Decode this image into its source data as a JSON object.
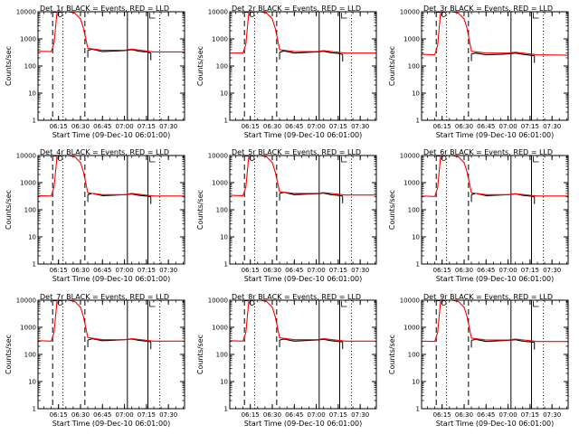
{
  "figure": {
    "xlabel": "Start Time (09-Dec-10 06:01:00)",
    "ylabel": "Counts/sec"
  },
  "chart_data": [
    {
      "type": "line",
      "title": "Det_1r BLACK = Events, RED = LLD",
      "xlabel": "Start Time (09-Dec-10 06:01:00)",
      "ylabel": "Counts/sec",
      "y_scale": "log",
      "ylim": [
        1,
        10000
      ],
      "xlim": [
        "06:01",
        "07:41"
      ],
      "x_ticks": [
        "06:15",
        "06:30",
        "06:45",
        "07:00",
        "07:15",
        "07:30"
      ],
      "y_ticks": [
        "1",
        "10",
        "100",
        "1000",
        "10000"
      ],
      "vertical_markers": {
        "dashed": [
          "06:11",
          "06:33"
        ],
        "dotted": [
          "06:18",
          "07:24"
        ],
        "solid": [
          "07:02",
          "07:16"
        ]
      },
      "series": [
        {
          "name": "Events",
          "color": "#000000",
          "x": [
            "06:35",
            "06:38",
            "06:45",
            "06:55",
            "07:00",
            "07:05",
            "07:10",
            "07:15",
            "07:18"
          ],
          "values": [
            380,
            420,
            340,
            360,
            370,
            400,
            350,
            330,
            300
          ]
        },
        {
          "name": "LLD",
          "color": "#ff0000",
          "x": [
            "06:01",
            "06:10",
            "06:12",
            "06:14",
            "06:18",
            "06:22",
            "06:26",
            "06:30",
            "06:32",
            "06:35",
            "06:45",
            "07:00",
            "07:05",
            "07:20",
            "07:41"
          ],
          "values": [
            350,
            340,
            700,
            10000,
            10000,
            10000,
            9000,
            5500,
            2500,
            450,
            380,
            380,
            420,
            330,
            330
          ]
        }
      ]
    },
    {
      "type": "line",
      "title": "Det_2r BLACK = Events, RED = LLD",
      "xlabel": "Start Time (09-Dec-10 06:01:00)",
      "ylabel": "Counts/sec",
      "y_scale": "log",
      "ylim": [
        1,
        10000
      ],
      "xlim": [
        "06:01",
        "07:41"
      ],
      "x_ticks": [
        "06:15",
        "06:30",
        "06:45",
        "07:00",
        "07:15",
        "07:30"
      ],
      "y_ticks": [
        "1",
        "10",
        "100",
        "1000",
        "10000"
      ],
      "vertical_markers": {
        "dashed": [
          "06:11",
          "06:33"
        ],
        "dotted": [
          "06:18",
          "07:24"
        ],
        "solid": [
          "07:02",
          "07:16"
        ]
      },
      "series": [
        {
          "name": "Events",
          "color": "#000000",
          "x": [
            "06:35",
            "06:38",
            "06:45",
            "06:55",
            "07:00",
            "07:05",
            "07:10",
            "07:15",
            "07:18"
          ],
          "values": [
            320,
            360,
            300,
            320,
            330,
            350,
            310,
            290,
            270
          ]
        },
        {
          "name": "LLD",
          "color": "#ff0000",
          "x": [
            "06:01",
            "06:10",
            "06:12",
            "06:14",
            "06:18",
            "06:22",
            "06:26",
            "06:30",
            "06:32",
            "06:35",
            "06:45",
            "07:00",
            "07:05",
            "07:20",
            "07:41"
          ],
          "values": [
            300,
            300,
            650,
            10000,
            10000,
            10000,
            9000,
            5500,
            2500,
            400,
            340,
            340,
            370,
            300,
            300
          ]
        }
      ]
    },
    {
      "type": "line",
      "title": "Det_3r BLACK = Events, RED = LLD",
      "xlabel": "Start Time (09-Dec-10 06:01:00)",
      "ylabel": "Counts/sec",
      "y_scale": "log",
      "ylim": [
        1,
        10000
      ],
      "xlim": [
        "06:01",
        "07:41"
      ],
      "x_ticks": [
        "06:15",
        "06:30",
        "06:45",
        "07:00",
        "07:15",
        "07:30"
      ],
      "y_ticks": [
        "1",
        "10",
        "100",
        "1000",
        "10000"
      ],
      "vertical_markers": {
        "dashed": [
          "06:11",
          "06:33"
        ],
        "dotted": [
          "06:18",
          "07:24"
        ],
        "solid": [
          "07:02",
          "07:16"
        ]
      },
      "series": [
        {
          "name": "Events",
          "color": "#000000",
          "x": [
            "06:35",
            "06:38",
            "06:45",
            "06:55",
            "07:00",
            "07:05",
            "07:10",
            "07:15",
            "07:18"
          ],
          "values": [
            280,
            300,
            260,
            270,
            280,
            300,
            270,
            250,
            240
          ]
        },
        {
          "name": "LLD",
          "color": "#ff0000",
          "x": [
            "06:01",
            "06:10",
            "06:12",
            "06:14",
            "06:18",
            "06:22",
            "06:26",
            "06:30",
            "06:32",
            "06:35",
            "06:45",
            "07:00",
            "07:05",
            "07:20",
            "07:41"
          ],
          "values": [
            270,
            260,
            600,
            10000,
            10000,
            10000,
            9000,
            5500,
            2500,
            350,
            300,
            300,
            320,
            260,
            250
          ]
        }
      ]
    },
    {
      "type": "line",
      "title": "Det_4r BLACK = Events, RED = LLD",
      "xlabel": "Start Time (09-Dec-10 06:01:00)",
      "ylabel": "Counts/sec",
      "y_scale": "log",
      "ylim": [
        1,
        10000
      ],
      "xlim": [
        "06:01",
        "07:41"
      ],
      "x_ticks": [
        "06:15",
        "06:30",
        "06:45",
        "07:00",
        "07:15",
        "07:30"
      ],
      "y_ticks": [
        "1",
        "10",
        "100",
        "1000",
        "10000"
      ],
      "vertical_markers": {
        "dashed": [
          "06:11",
          "06:33"
        ],
        "dotted": [
          "06:18",
          "07:24"
        ],
        "solid": [
          "07:02",
          "07:16"
        ]
      },
      "series": [
        {
          "name": "Events",
          "color": "#000000",
          "x": [
            "06:35",
            "06:38",
            "06:45",
            "06:55",
            "07:00",
            "07:05",
            "07:10",
            "07:15",
            "07:18"
          ],
          "values": [
            360,
            400,
            330,
            350,
            360,
            380,
            340,
            320,
            300
          ]
        },
        {
          "name": "LLD",
          "color": "#ff0000",
          "x": [
            "06:01",
            "06:10",
            "06:12",
            "06:14",
            "06:18",
            "06:22",
            "06:26",
            "06:30",
            "06:32",
            "06:35",
            "06:45",
            "07:00",
            "07:05",
            "07:20",
            "07:41"
          ],
          "values": [
            330,
            320,
            700,
            10000,
            10000,
            10000,
            9000,
            5500,
            2500,
            420,
            360,
            360,
            400,
            320,
            320
          ]
        }
      ]
    },
    {
      "type": "line",
      "title": "Det_5r BLACK = Events, RED = LLD",
      "xlabel": "Start Time (09-Dec-10 06:01:00)",
      "ylabel": "Counts/sec",
      "y_scale": "log",
      "ylim": [
        1,
        10000
      ],
      "xlim": [
        "06:01",
        "07:41"
      ],
      "x_ticks": [
        "06:15",
        "06:30",
        "06:45",
        "07:00",
        "07:15",
        "07:30"
      ],
      "y_ticks": [
        "1",
        "10",
        "100",
        "1000",
        "10000"
      ],
      "vertical_markers": {
        "dashed": [
          "06:11",
          "06:33"
        ],
        "dotted": [
          "06:18",
          "07:24"
        ],
        "solid": [
          "07:02",
          "07:16"
        ]
      },
      "series": [
        {
          "name": "Events",
          "color": "#000000",
          "x": [
            "06:35",
            "06:38",
            "06:45",
            "06:55",
            "07:00",
            "07:05",
            "07:10",
            "07:15",
            "07:18"
          ],
          "values": [
            400,
            440,
            360,
            380,
            390,
            410,
            360,
            340,
            320
          ]
        },
        {
          "name": "LLD",
          "color": "#ff0000",
          "x": [
            "06:01",
            "06:10",
            "06:12",
            "06:14",
            "06:18",
            "06:22",
            "06:26",
            "06:30",
            "06:32",
            "06:35",
            "06:45",
            "07:00",
            "07:05",
            "07:20",
            "07:41"
          ],
          "values": [
            340,
            330,
            700,
            10000,
            10000,
            10000,
            9000,
            5500,
            2500,
            460,
            400,
            400,
            430,
            350,
            350
          ]
        }
      ]
    },
    {
      "type": "line",
      "title": "Det_6r BLACK = Events, RED = LLD",
      "xlabel": "Start Time (09-Dec-10 06:01:00)",
      "ylabel": "Counts/sec",
      "y_scale": "log",
      "ylim": [
        1,
        10000
      ],
      "xlim": [
        "06:01",
        "07:41"
      ],
      "x_ticks": [
        "06:15",
        "06:30",
        "06:45",
        "07:00",
        "07:15",
        "07:30"
      ],
      "y_ticks": [
        "1",
        "10",
        "100",
        "1000",
        "10000"
      ],
      "vertical_markers": {
        "dashed": [
          "06:11",
          "06:33"
        ],
        "dotted": [
          "06:18",
          "07:24"
        ],
        "solid": [
          "07:02",
          "07:16"
        ]
      },
      "series": [
        {
          "name": "Events",
          "color": "#000000",
          "x": [
            "06:35",
            "06:38",
            "06:45",
            "06:55",
            "07:00",
            "07:05",
            "07:10",
            "07:15",
            "07:18"
          ],
          "values": [
            360,
            400,
            330,
            350,
            360,
            390,
            340,
            320,
            300
          ]
        },
        {
          "name": "LLD",
          "color": "#ff0000",
          "x": [
            "06:01",
            "06:10",
            "06:12",
            "06:14",
            "06:18",
            "06:22",
            "06:26",
            "06:30",
            "06:32",
            "06:35",
            "06:45",
            "07:00",
            "07:05",
            "07:20",
            "07:41"
          ],
          "values": [
            320,
            310,
            650,
            10000,
            10000,
            10000,
            9000,
            5500,
            2500,
            420,
            360,
            360,
            390,
            320,
            320
          ]
        }
      ]
    },
    {
      "type": "line",
      "title": "Det_7r BLACK = Events, RED = LLD",
      "xlabel": "Start Time (09-Dec-10 06:01:00)",
      "ylabel": "Counts/sec",
      "y_scale": "log",
      "ylim": [
        1,
        10000
      ],
      "xlim": [
        "06:01",
        "07:41"
      ],
      "x_ticks": [
        "06:15",
        "06:30",
        "06:45",
        "07:00",
        "07:15",
        "07:30"
      ],
      "y_ticks": [
        "1",
        "10",
        "100",
        "1000",
        "10000"
      ],
      "vertical_markers": {
        "dashed": [
          "06:11",
          "06:33"
        ],
        "dotted": [
          "06:18",
          "07:24"
        ],
        "solid": [
          "07:02",
          "07:16"
        ]
      },
      "series": [
        {
          "name": "Events",
          "color": "#000000",
          "x": [
            "06:35",
            "06:38",
            "06:45",
            "06:55",
            "07:00",
            "07:05",
            "07:10",
            "07:15",
            "07:18"
          ],
          "values": [
            340,
            380,
            320,
            340,
            350,
            370,
            330,
            310,
            290
          ]
        },
        {
          "name": "LLD",
          "color": "#ff0000",
          "x": [
            "06:01",
            "06:10",
            "06:12",
            "06:14",
            "06:18",
            "06:22",
            "06:26",
            "06:30",
            "06:32",
            "06:35",
            "06:45",
            "07:00",
            "07:05",
            "07:20",
            "07:41"
          ],
          "values": [
            320,
            310,
            650,
            10000,
            10000,
            10000,
            9000,
            5500,
            2500,
            420,
            350,
            350,
            380,
            310,
            310
          ]
        }
      ]
    },
    {
      "type": "line",
      "title": "Det_8r BLACK = Events, RED = LLD",
      "xlabel": "Start Time (09-Dec-10 06:01:00)",
      "ylabel": "Counts/sec",
      "y_scale": "log",
      "ylim": [
        1,
        10000
      ],
      "xlim": [
        "06:01",
        "07:41"
      ],
      "x_ticks": [
        "06:15",
        "06:30",
        "06:45",
        "07:00",
        "07:15",
        "07:30"
      ],
      "y_ticks": [
        "1",
        "10",
        "100",
        "1000",
        "10000"
      ],
      "vertical_markers": {
        "dashed": [
          "06:11",
          "06:33"
        ],
        "dotted": [
          "06:18",
          "07:24"
        ],
        "solid": [
          "07:02",
          "07:16"
        ]
      },
      "series": [
        {
          "name": "Events",
          "color": "#000000",
          "x": [
            "06:35",
            "06:38",
            "06:45",
            "06:55",
            "07:00",
            "07:05",
            "07:10",
            "07:15",
            "07:18"
          ],
          "values": [
            340,
            370,
            310,
            330,
            340,
            360,
            320,
            300,
            290
          ]
        },
        {
          "name": "LLD",
          "color": "#ff0000",
          "x": [
            "06:01",
            "06:10",
            "06:12",
            "06:14",
            "06:18",
            "06:22",
            "06:26",
            "06:30",
            "06:32",
            "06:35",
            "06:45",
            "07:00",
            "07:05",
            "07:20",
            "07:41"
          ],
          "values": [
            320,
            310,
            650,
            10000,
            10000,
            10000,
            9000,
            5500,
            2500,
            410,
            350,
            350,
            380,
            310,
            310
          ]
        }
      ]
    },
    {
      "type": "line",
      "title": "Det_9r BLACK = Events, RED = LLD",
      "xlabel": "Start Time (09-Dec-10 06:01:00)",
      "ylabel": "Counts/sec",
      "y_scale": "log",
      "ylim": [
        1,
        10000
      ],
      "xlim": [
        "06:01",
        "07:41"
      ],
      "x_ticks": [
        "06:15",
        "06:30",
        "06:45",
        "07:00",
        "07:15",
        "07:30"
      ],
      "y_ticks": [
        "1",
        "10",
        "100",
        "1000",
        "10000"
      ],
      "vertical_markers": {
        "dashed": [
          "06:11",
          "06:33"
        ],
        "dotted": [
          "06:18",
          "07:24"
        ],
        "solid": [
          "07:02",
          "07:16"
        ]
      },
      "series": [
        {
          "name": "Events",
          "color": "#000000",
          "x": [
            "06:35",
            "06:38",
            "06:45",
            "06:55",
            "07:00",
            "07:05",
            "07:10",
            "07:15",
            "07:18"
          ],
          "values": [
            330,
            360,
            300,
            320,
            330,
            350,
            310,
            290,
            280
          ]
        },
        {
          "name": "LLD",
          "color": "#ff0000",
          "x": [
            "06:01",
            "06:10",
            "06:12",
            "06:14",
            "06:18",
            "06:22",
            "06:26",
            "06:30",
            "06:32",
            "06:35",
            "06:45",
            "07:00",
            "07:05",
            "07:20",
            "07:41"
          ],
          "values": [
            310,
            300,
            650,
            10000,
            10000,
            10000,
            9000,
            5500,
            2500,
            400,
            340,
            340,
            370,
            300,
            300
          ]
        }
      ]
    }
  ]
}
